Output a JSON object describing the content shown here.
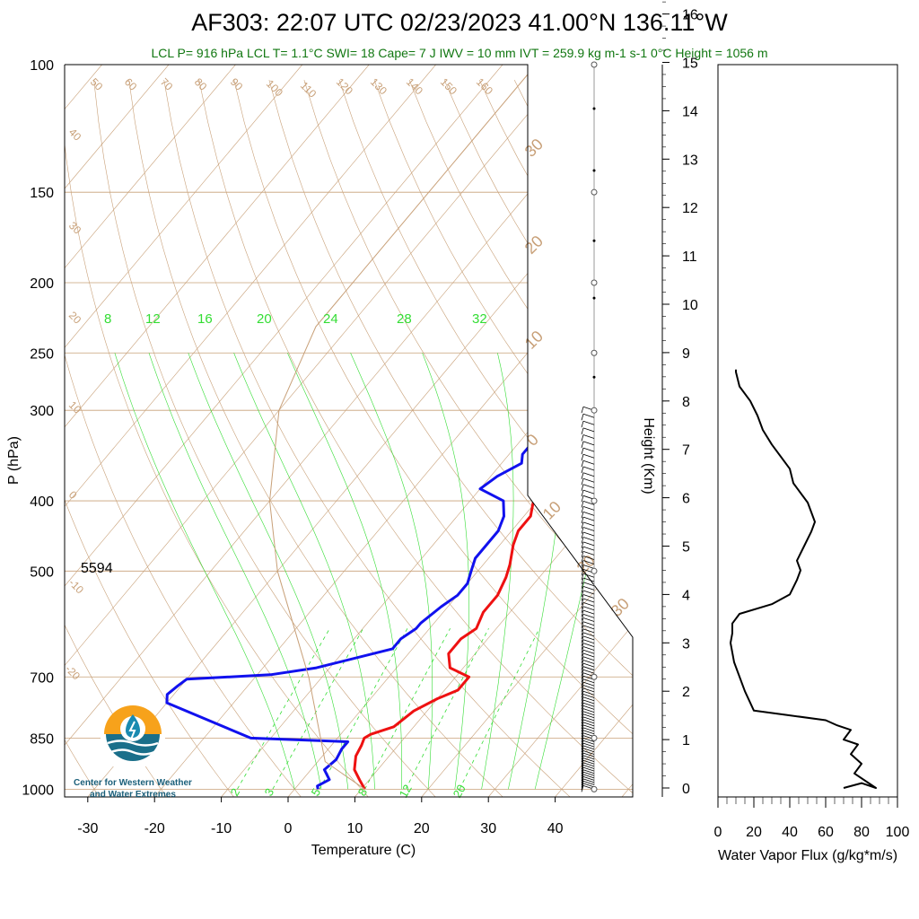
{
  "header": {
    "title": "AF303: 22:07 UTC 02/23/2023  41.00°N 136.11°W",
    "subtitle": "LCL P= 916 hPa  LCL T= 1.1°C  SWI= 18  Cape= 7 J  IWV = 10 mm  IVT = 259.9 kg m-1 s-1  0°C Height = 1056 m"
  },
  "skewt": {
    "ylabel": "P (hPa)",
    "xlabel": "Temperature (C)",
    "pressure_ticks": [
      "100",
      "150",
      "200",
      "250",
      "300",
      "400",
      "500",
      "700",
      "850",
      "1000"
    ],
    "temp_ticks": [
      "-30",
      "-20",
      "-10",
      "0",
      "10",
      "20",
      "30",
      "40"
    ],
    "height_500": "5594",
    "dry_adiabat_labels": [
      "50",
      "60",
      "70",
      "80",
      "90",
      "100",
      "110",
      "120",
      "130",
      "140",
      "150",
      "160",
      "40",
      "30",
      "20",
      "10",
      "0",
      "-10",
      "-20"
    ],
    "mixing_ratio_labels_top": [
      "8",
      "12",
      "16",
      "20",
      "24",
      "28",
      "32"
    ],
    "mixing_ratio_labels_bottom": [
      "2",
      "3",
      "5",
      "8",
      "12",
      "20"
    ],
    "wind_barb_labels": [
      "30",
      "20",
      "10",
      "0",
      "10",
      "20",
      "30"
    ]
  },
  "height_axis": {
    "label": "Height (Km)",
    "ticks": [
      "0",
      "1",
      "2",
      "3",
      "4",
      "5",
      "6",
      "7",
      "8",
      "9",
      "10",
      "11",
      "12",
      "13",
      "14",
      "15",
      "16"
    ]
  },
  "flux_panel": {
    "xlabel": "Water Vapor Flux (g/kg*m/s)",
    "x_ticks": [
      "0",
      "20",
      "40",
      "60",
      "80",
      "100"
    ]
  },
  "logo": {
    "line1": "Center for Western Weather",
    "line2": "and Water Extremes"
  },
  "colors": {
    "temperature": "#ee1111",
    "dewpoint": "#1111ee",
    "isotherm": "#c8a078",
    "mixing_ratio": "#33dd33",
    "flux": "#000000"
  },
  "chart_data": [
    {
      "type": "line",
      "title": "AF303: 22:07 UTC 02/23/2023  41.00°N 136.11°W",
      "xlabel": "Temperature (C)",
      "ylabel": "P (hPa)",
      "xlim": [
        -35,
        50
      ],
      "ylim": [
        1025,
        100
      ],
      "series": [
        {
          "name": "Temperature",
          "p": [
            1000,
            970,
            940,
            900,
            870,
            850,
            840,
            820,
            780,
            750,
            730,
            700,
            680,
            650,
            620,
            600,
            570,
            540,
            510,
            490,
            460,
            440,
            420,
            400,
            380,
            360,
            340,
            335
          ],
          "values": [
            10.5,
            8.5,
            6.5,
            5.0,
            4.5,
            4.0,
            4.5,
            7.0,
            8.0,
            10.0,
            12.0,
            12.0,
            8.0,
            6.0,
            6.0,
            7.0,
            6.0,
            6.0,
            5.0,
            4.0,
            2.0,
            1.0,
            1.0,
            -0.5,
            -2.0,
            -3.5,
            -4.0,
            -4.0
          ]
        },
        {
          "name": "Dewpoint",
          "p": [
            1000,
            990,
            970,
            940,
            910,
            880,
            860,
            850,
            760,
            740,
            720,
            705,
            695,
            680,
            640,
            620,
            600,
            590,
            560,
            540,
            520,
            500,
            480,
            460,
            440,
            420,
            400,
            385,
            370,
            355,
            345,
            335
          ],
          "values": [
            3.5,
            3.0,
            4.0,
            2.0,
            2.5,
            2.0,
            2.0,
            -13.0,
            -30.0,
            -31.0,
            -30.5,
            -30.0,
            -18.0,
            -12.0,
            -3.0,
            -3.0,
            -2.0,
            -2.0,
            -1.0,
            0.0,
            0.0,
            -1.0,
            -2.0,
            -2.0,
            -2.0,
            -3.0,
            -5.0,
            -10.0,
            -9.0,
            -7.0,
            -8.0,
            -8.0
          ]
        },
        {
          "name": "Parcel",
          "p": [
            1000,
            916,
            700,
            500,
            400,
            300,
            230,
            100
          ],
          "values": [
            10.5,
            1.1,
            -12.0,
            -30.0,
            -40.0,
            -50.0,
            -55.0,
            -55.0
          ]
        }
      ]
    },
    {
      "type": "line",
      "xlabel": "Water Vapor Flux (g/kg*m/s)",
      "ylabel": "Height (Km)",
      "xlim": [
        0,
        100
      ],
      "ylim": [
        0,
        16.5
      ],
      "x": [
        70,
        80,
        88,
        76,
        80,
        74,
        78,
        70,
        74,
        66,
        60,
        40,
        20,
        15,
        9,
        7,
        8,
        8,
        8,
        12,
        30,
        40,
        44,
        46,
        44,
        48,
        52,
        54,
        50,
        42,
        40,
        30,
        25,
        22,
        18,
        12,
        10,
        10
      ],
      "y": [
        0.0,
        0.1,
        0.0,
        0.3,
        0.5,
        0.7,
        0.9,
        1.0,
        1.2,
        1.3,
        1.4,
        1.5,
        1.6,
        2.0,
        2.6,
        3.0,
        3.2,
        3.3,
        3.4,
        3.6,
        3.8,
        4.0,
        4.3,
        4.5,
        4.7,
        5.0,
        5.3,
        5.5,
        5.9,
        6.3,
        6.6,
        7.1,
        7.4,
        7.7,
        8.0,
        8.3,
        8.6,
        8.65
      ]
    }
  ]
}
